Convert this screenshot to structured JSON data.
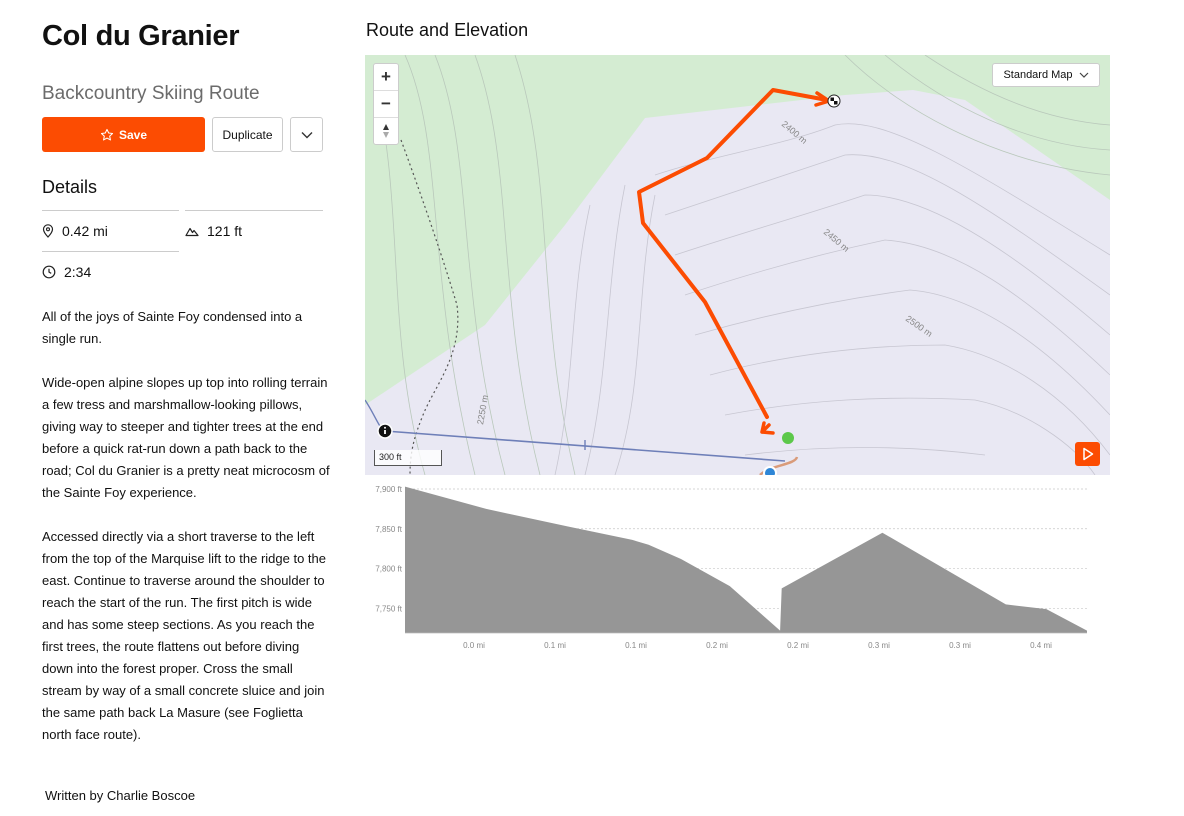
{
  "route": {
    "title": "Col du Granier",
    "subtitle": "Backcountry Skiing Route"
  },
  "actions": {
    "save_label": "Save",
    "duplicate_label": "Duplicate"
  },
  "details": {
    "heading": "Details",
    "distance": "0.42 mi",
    "elevation_gain": "121 ft",
    "time": "2:34"
  },
  "description": {
    "paragraphs": [
      "All of the joys of Sainte Foy condensed into a single run.",
      "Wide-open alpine slopes up top into rolling terrain a few tress and marshmallow-looking pillows, giving way to steeper and tighter trees at the end before a quick rat-run down a path back to the road; Col du Granier is a pretty neat microcosm of the Sainte Foy experience.",
      "Accessed directly via a short traverse to the left from the top of the Marquise lift to the ridge to the east. Continue to traverse around the shoulder to reach the start of the run. The first pitch is wide and has some steep sections. As you reach the first trees, the route flattens out before diving down into the forest proper. Cross the small stream by way of a small concrete sluice and join the same path back La Masure (see Foglietta north face route)."
    ],
    "author": " Written by Charlie Boscoe"
  },
  "map_section": {
    "heading": "Route and Elevation",
    "map_type": "Standard Map",
    "scale_label": "300 ft",
    "zoom_in": "+",
    "zoom_out": "−",
    "contour_labels": [
      "2400 m",
      "2450 m",
      "2500 m",
      "2250 m"
    ]
  },
  "colors": {
    "accent": "#fc4c02",
    "forest": "#d4ecd2",
    "snow": "#e9e8f3",
    "route": "#fc4c02",
    "start": "#5cc84a"
  },
  "chart_data": {
    "type": "area",
    "x_tick_labels": [
      "0.0 mi",
      "0.1 mi",
      "0.1 mi",
      "0.2 mi",
      "0.2 mi",
      "0.3 mi",
      "0.3 mi",
      "0.4 mi"
    ],
    "y_tick_labels": [
      "7,900 ft",
      "7,850 ft",
      "7,800 ft",
      "7,750 ft"
    ],
    "y_ticks": [
      7900,
      7850,
      7800,
      7750
    ],
    "ylim": [
      7719,
      7905
    ],
    "xlim": [
      0,
      0.42
    ],
    "grid": true,
    "x": [
      0,
      0.05,
      0.1,
      0.14,
      0.15,
      0.17,
      0.2,
      0.231,
      0.232,
      0.294,
      0.37,
      0.395,
      0.42
    ],
    "values": [
      7903,
      7875,
      7853,
      7836,
      7830,
      7812,
      7778,
      7722,
      7775,
      7845,
      7755,
      7749,
      7722
    ]
  }
}
